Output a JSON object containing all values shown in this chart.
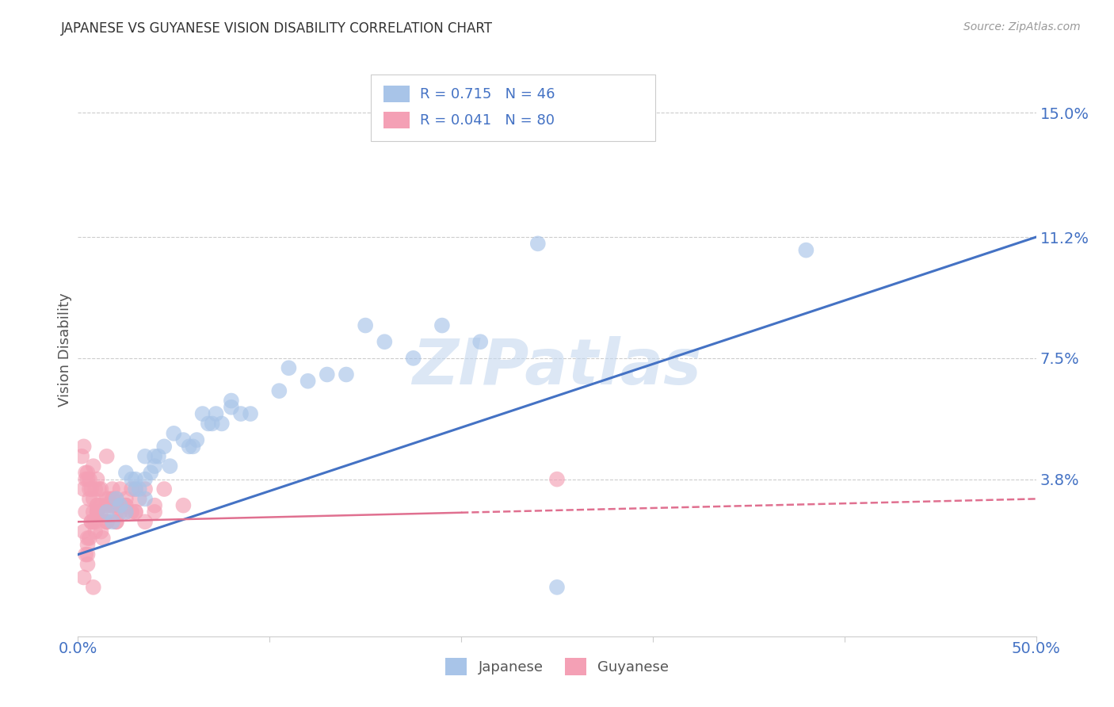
{
  "title": "JAPANESE VS GUYANESE VISION DISABILITY CORRELATION CHART",
  "source": "Source: ZipAtlas.com",
  "ylabel": "Vision Disability",
  "ytick_labels": [
    "3.8%",
    "7.5%",
    "11.2%",
    "15.0%"
  ],
  "ytick_values": [
    3.8,
    7.5,
    11.2,
    15.0
  ],
  "xlim": [
    0.0,
    50.0
  ],
  "ylim": [
    -1.0,
    16.5
  ],
  "legend_label_japanese": "Japanese",
  "legend_label_guyanese": "Guyanese",
  "blue_color": "#a8c4e8",
  "blue_line_color": "#4472c4",
  "pink_color": "#f4a0b5",
  "pink_line_color": "#e07090",
  "legend_r_color": "#4472c4",
  "axis_label_color": "#4472c4",
  "watermark": "ZIPatlas",
  "watermark_color": "#c5d8ef",
  "japanese_x": [
    3.5,
    7.0,
    10.5,
    14.0,
    17.5,
    21.0,
    3.0,
    6.5,
    11.0,
    8.0,
    13.0,
    16.0,
    19.0,
    5.5,
    9.0,
    4.0,
    12.0,
    7.5,
    6.0,
    15.0,
    2.5,
    4.5,
    8.5,
    3.2,
    5.0,
    6.8,
    2.8,
    4.2,
    3.8,
    7.2,
    1.5,
    2.0,
    3.0,
    4.8,
    6.2,
    2.2,
    5.8,
    4.0,
    3.5,
    8.0,
    1.8,
    2.5,
    3.5,
    38.0,
    24.0,
    25.0
  ],
  "japanese_y": [
    4.5,
    5.5,
    6.5,
    7.0,
    7.5,
    8.0,
    3.8,
    5.8,
    7.2,
    6.2,
    7.0,
    8.0,
    8.5,
    5.0,
    5.8,
    4.2,
    6.8,
    5.5,
    4.8,
    8.5,
    4.0,
    4.8,
    5.8,
    3.5,
    5.2,
    5.5,
    3.8,
    4.5,
    4.0,
    5.8,
    2.8,
    3.2,
    3.5,
    4.2,
    5.0,
    3.0,
    4.8,
    4.5,
    3.8,
    6.0,
    2.5,
    2.8,
    3.2,
    10.8,
    11.0,
    0.5
  ],
  "guyanese_x": [
    0.3,
    0.5,
    0.8,
    1.0,
    1.2,
    1.5,
    0.2,
    0.6,
    0.9,
    1.1,
    1.3,
    1.6,
    1.8,
    0.4,
    0.7,
    2.0,
    2.5,
    3.0,
    0.5,
    0.8,
    1.5,
    2.2,
    3.5,
    0.3,
    0.6,
    1.0,
    1.8,
    2.8,
    0.4,
    0.9,
    1.2,
    2.0,
    3.2,
    0.5,
    1.5,
    2.5,
    4.0,
    0.8,
    1.0,
    1.5,
    2.0,
    3.0,
    4.5,
    5.5,
    0.3,
    0.7,
    1.2,
    2.0,
    0.5,
    1.0,
    1.8,
    2.8,
    0.4,
    0.8,
    1.5,
    2.2,
    3.5,
    0.6,
    1.0,
    1.8,
    2.5,
    0.3,
    0.9,
    1.5,
    0.5,
    1.2,
    2.0,
    0.7,
    1.5,
    2.5,
    4.0,
    0.4,
    1.0,
    2.0,
    0.6,
    1.8,
    3.0,
    0.5,
    0.8,
    25.0
  ],
  "guyanese_y": [
    3.5,
    4.0,
    3.2,
    2.8,
    3.0,
    2.5,
    4.5,
    3.8,
    2.2,
    3.5,
    2.0,
    3.2,
    3.0,
    2.8,
    3.5,
    2.5,
    3.0,
    3.5,
    1.8,
    2.5,
    3.0,
    2.8,
    3.5,
    2.2,
    2.0,
    3.8,
    3.2,
    2.8,
    4.0,
    3.5,
    2.2,
    3.0,
    3.2,
    3.8,
    2.5,
    2.8,
    3.0,
    4.2,
    3.0,
    2.5,
    3.2,
    2.8,
    3.5,
    3.0,
    4.8,
    2.5,
    3.5,
    2.8,
    2.0,
    2.8,
    3.2,
    3.5,
    1.5,
    2.8,
    3.0,
    3.5,
    2.5,
    3.2,
    2.8,
    3.5,
    3.0,
    0.8,
    2.5,
    3.2,
    1.2,
    2.8,
    3.0,
    2.5,
    4.5,
    3.2,
    2.8,
    3.8,
    3.0,
    2.5,
    3.5,
    3.0,
    2.8,
    1.5,
    0.5,
    3.8
  ],
  "blue_line_x": [
    0.0,
    50.0
  ],
  "blue_line_y": [
    1.5,
    11.2
  ],
  "pink_line_x": [
    0.0,
    50.0
  ],
  "pink_line_y": [
    2.5,
    3.2
  ]
}
